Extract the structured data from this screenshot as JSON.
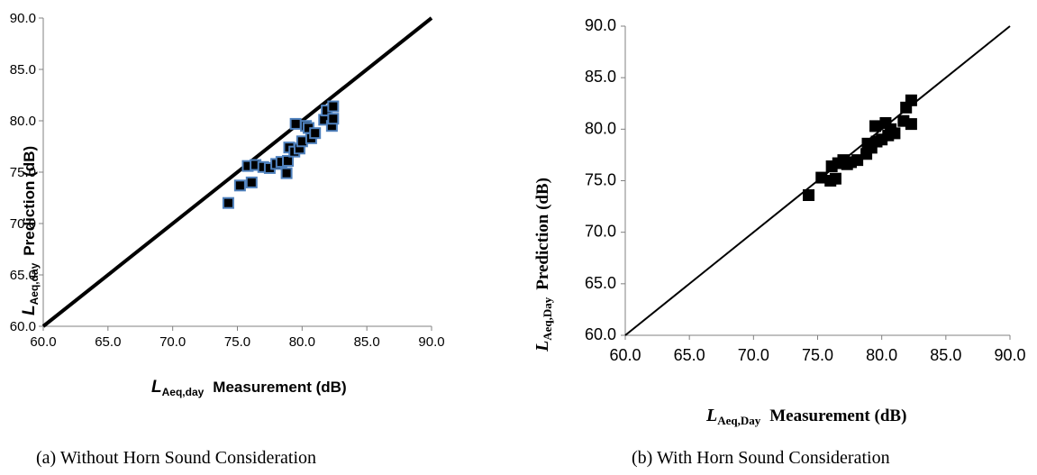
{
  "chart_data": [
    {
      "type": "scatter",
      "caption": "(a)  Without Horn Sound Consideration",
      "xlabel_main": "L",
      "xlabel_sub": "Aeq,day",
      "xlabel_rest": "Measurement (dB)",
      "ylabel_main": "L",
      "ylabel_sub": "Aeq,day",
      "ylabel_rest": "Prediction (dB)",
      "xlim": [
        60,
        90
      ],
      "ylim": [
        60,
        90
      ],
      "xticks": [
        "60.0",
        "65.0",
        "70.0",
        "75.0",
        "80.0",
        "85.0",
        "90.0"
      ],
      "yticks": [
        "60.0",
        "65.0",
        "70.0",
        "75.0",
        "80.0",
        "85.0",
        "90.0"
      ],
      "reference_line": [
        [
          60,
          60
        ],
        [
          90,
          90
        ]
      ],
      "marker_fill": "#000000",
      "marker_edge": "#4f81bd",
      "line_color": "#000000",
      "points": [
        [
          74.3,
          72.0
        ],
        [
          75.2,
          73.7
        ],
        [
          75.8,
          75.6
        ],
        [
          76.1,
          74.0
        ],
        [
          76.4,
          75.7
        ],
        [
          77.0,
          75.5
        ],
        [
          77.5,
          75.4
        ],
        [
          78.0,
          75.8
        ],
        [
          78.4,
          76.0
        ],
        [
          78.8,
          74.9
        ],
        [
          78.9,
          76.1
        ],
        [
          79.0,
          77.4
        ],
        [
          79.4,
          77.0
        ],
        [
          79.5,
          79.7
        ],
        [
          79.8,
          77.3
        ],
        [
          80.0,
          78.0
        ],
        [
          80.3,
          79.5
        ],
        [
          80.5,
          79.3
        ],
        [
          80.7,
          78.3
        ],
        [
          81.0,
          78.8
        ],
        [
          81.7,
          80.1
        ],
        [
          81.9,
          81.0
        ],
        [
          82.3,
          79.5
        ],
        [
          82.4,
          81.4
        ],
        [
          82.4,
          80.2
        ]
      ]
    },
    {
      "type": "scatter",
      "caption": "(b) With Horn Sound Consideration",
      "xlabel_main": "L",
      "xlabel_sub": "Aeq,Day",
      "xlabel_rest": "Measurement (dB)",
      "ylabel_main": "L",
      "ylabel_sub": "Aeq,Day",
      "ylabel_rest": "Prediction (dB)",
      "xlim": [
        60,
        90
      ],
      "ylim": [
        60,
        90
      ],
      "xticks": [
        "60.0",
        "65.0",
        "70.0",
        "75.0",
        "80.0",
        "85.0",
        "90.0"
      ],
      "yticks": [
        "60.0",
        "65.0",
        "70.0",
        "75.0",
        "80.0",
        "85.0",
        "90.0"
      ],
      "reference_line": [
        [
          60,
          60
        ],
        [
          90,
          90
        ]
      ],
      "marker_fill": "#000000",
      "marker_edge": "#000000",
      "line_color": "#000000",
      "points": [
        [
          74.3,
          73.6
        ],
        [
          75.3,
          75.3
        ],
        [
          76.0,
          75.0
        ],
        [
          76.1,
          76.4
        ],
        [
          76.4,
          75.2
        ],
        [
          76.6,
          76.7
        ],
        [
          77.0,
          77.0
        ],
        [
          77.3,
          76.6
        ],
        [
          77.6,
          76.8
        ],
        [
          78.1,
          77.0
        ],
        [
          78.8,
          77.6
        ],
        [
          78.9,
          78.6
        ],
        [
          79.2,
          78.2
        ],
        [
          79.5,
          80.3
        ],
        [
          79.6,
          78.8
        ],
        [
          80.0,
          79.0
        ],
        [
          80.3,
          80.6
        ],
        [
          80.5,
          79.4
        ],
        [
          80.7,
          80.0
        ],
        [
          81.0,
          79.6
        ],
        [
          81.7,
          80.8
        ],
        [
          81.9,
          82.1
        ],
        [
          82.3,
          82.8
        ],
        [
          82.3,
          80.5
        ]
      ]
    }
  ]
}
